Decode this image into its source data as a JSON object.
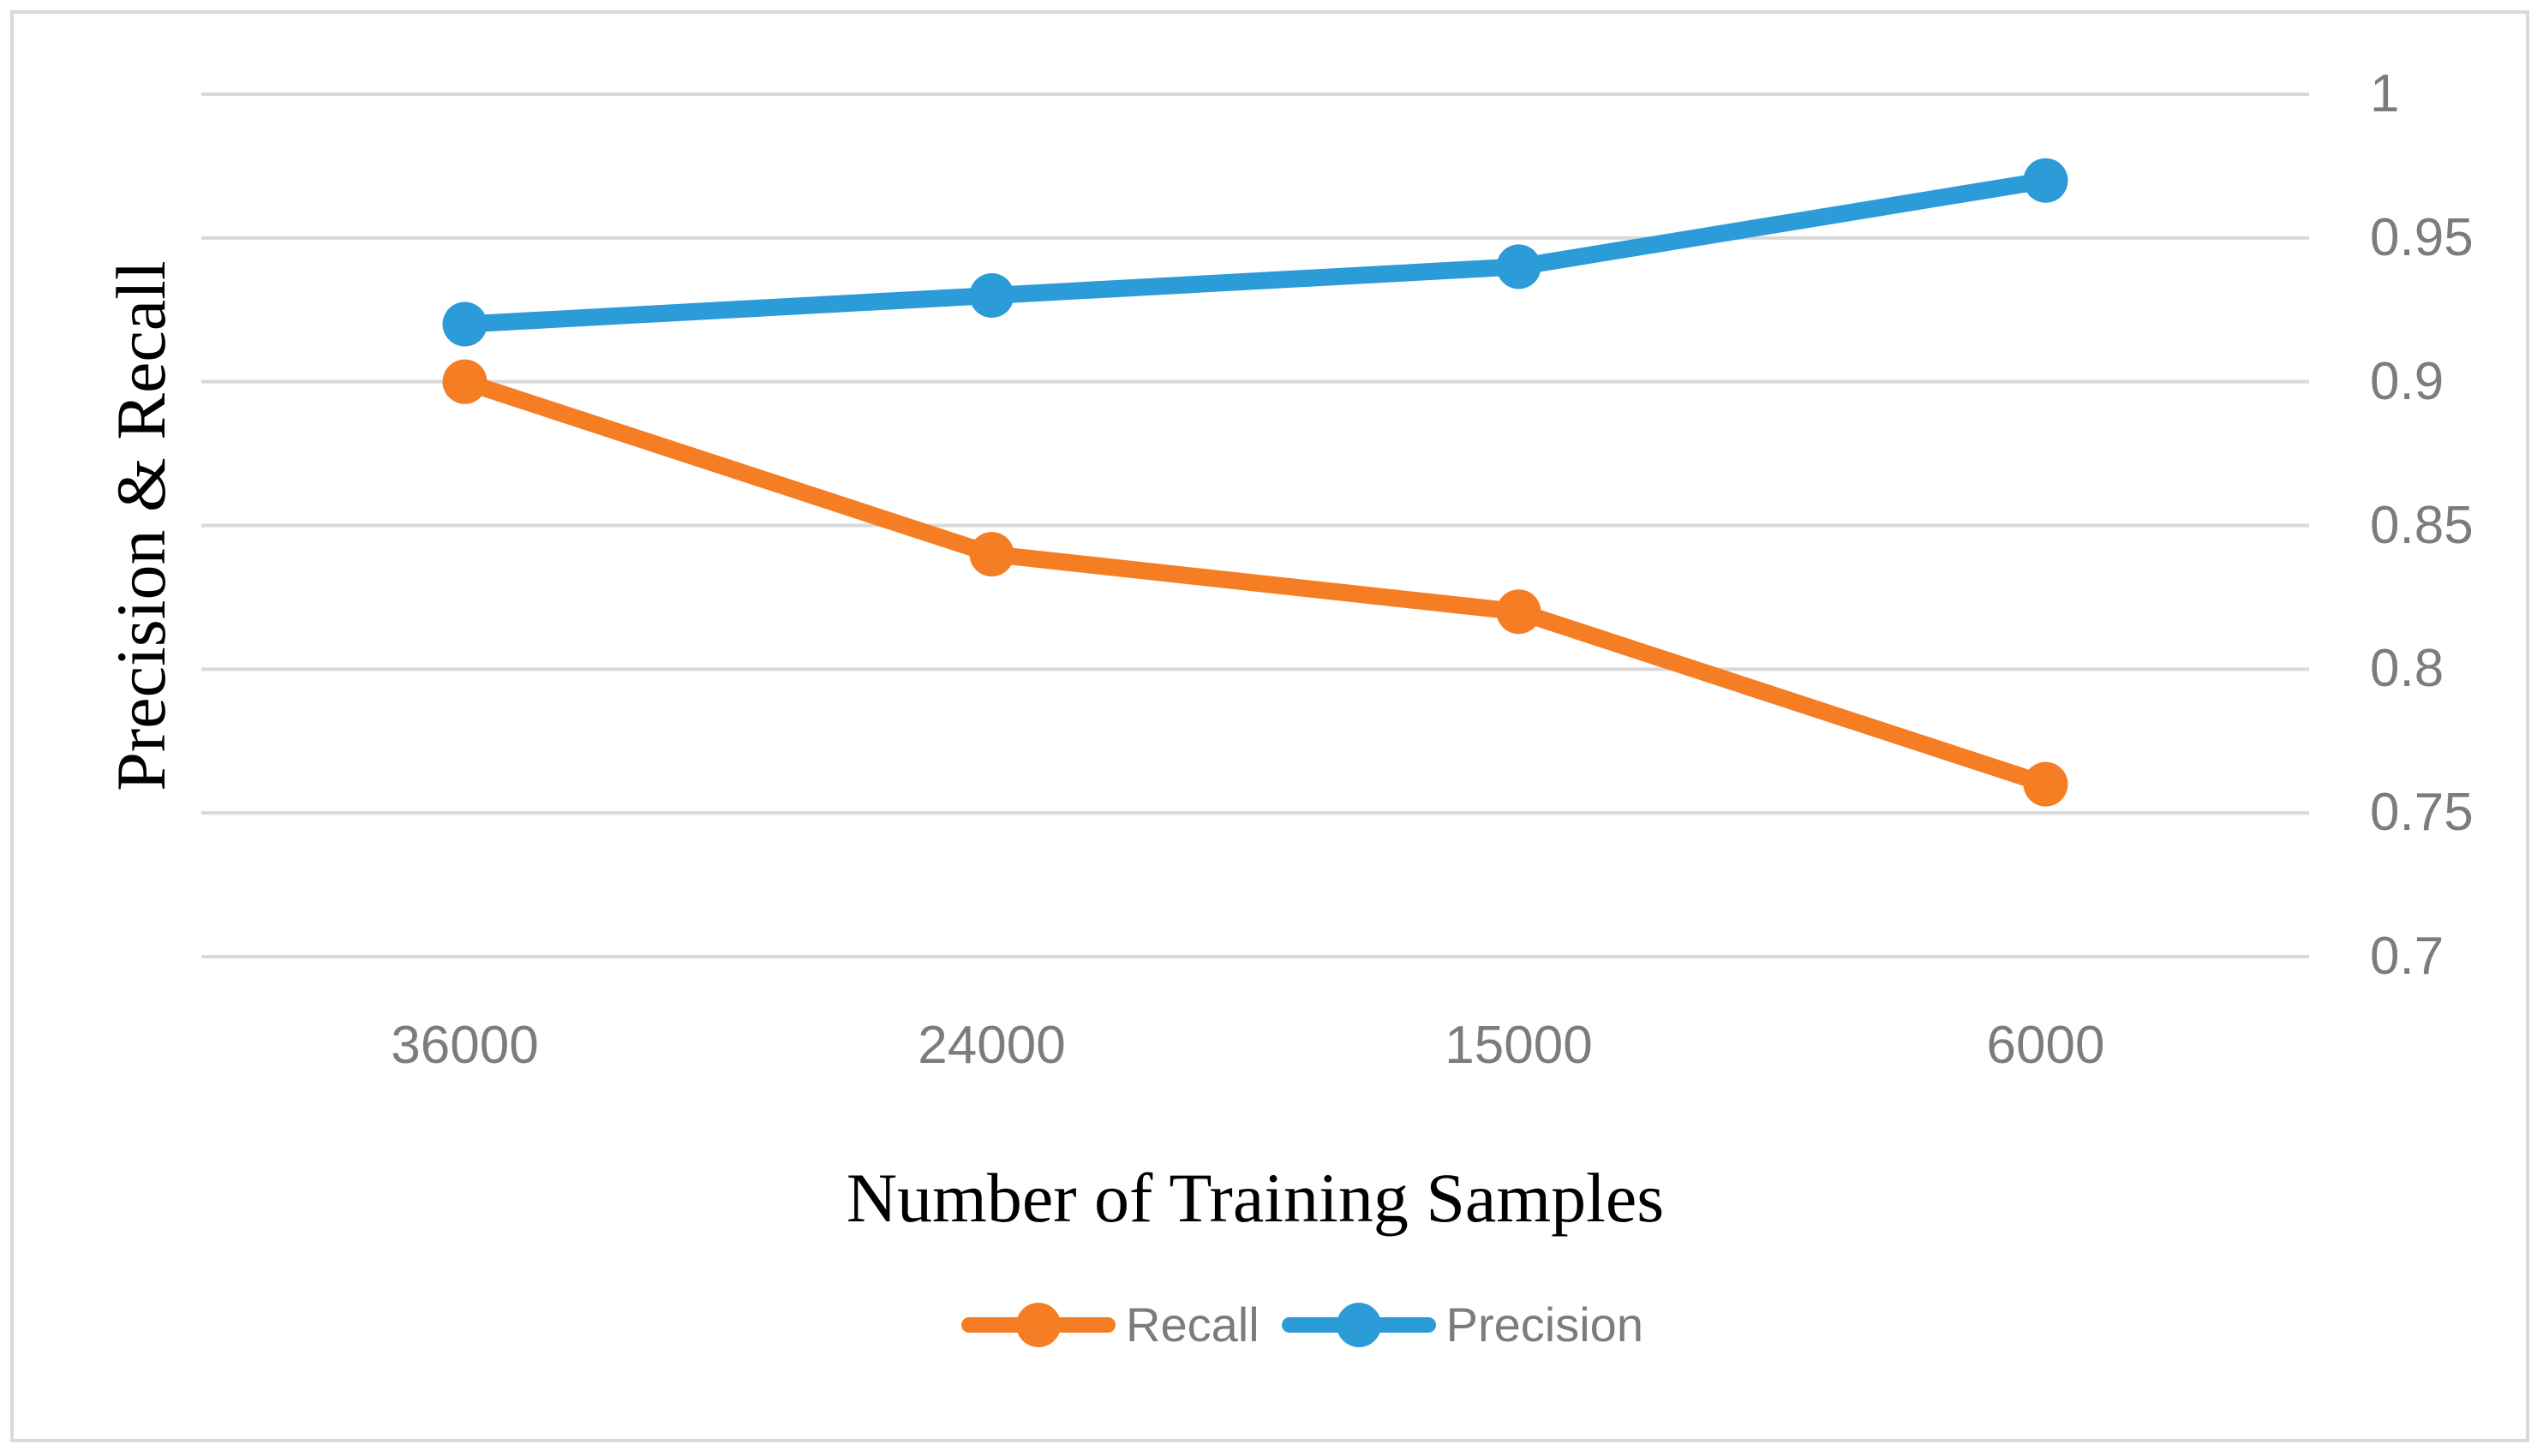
{
  "chart_data": {
    "type": "line",
    "categories": [
      "36000",
      "24000",
      "15000",
      "6000"
    ],
    "series": [
      {
        "name": "Recall",
        "color": "#F57E24",
        "values": [
          0.9,
          0.84,
          0.82,
          0.76
        ]
      },
      {
        "name": "Precision",
        "color": "#2B9CD8",
        "values": [
          0.92,
          0.93,
          0.94,
          0.97
        ]
      }
    ],
    "xlabel": "Number of Training Samples",
    "ylabel": "Precision & Recall",
    "ylim": [
      0.7,
      1.0
    ],
    "ytick_step": 0.05,
    "yticks": [
      1,
      0.95,
      0.9,
      0.85,
      0.8,
      0.75,
      0.7
    ],
    "ytick_labels": [
      "1",
      "0.95",
      "0.9",
      "0.85",
      "0.8",
      "0.75",
      "0.7"
    ],
    "axis_side": "right",
    "grid": "horizontal",
    "legend_position": "bottom"
  },
  "colors": {
    "grid": "#D9D9D9",
    "frame": "#D9D9D9",
    "tick_text": "#7C7C7C",
    "legend_text": "#7C7C7C",
    "axis_title": "#000000",
    "background": "#FFFFFF"
  }
}
